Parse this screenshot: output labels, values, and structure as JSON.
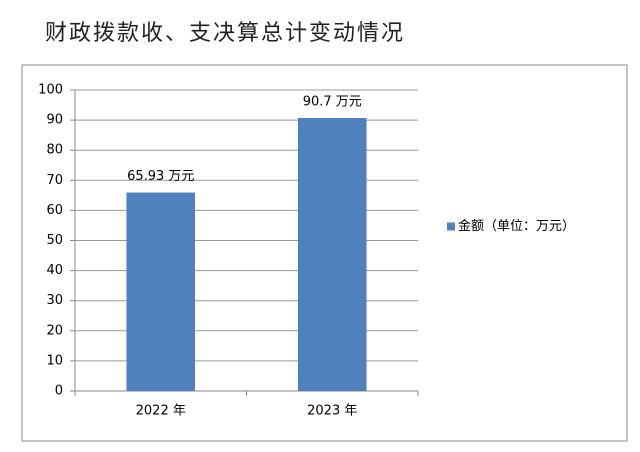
{
  "chart_data": {
    "type": "bar",
    "title": "财政拨款收、支决算总计变动情况",
    "categories": [
      "2022 年",
      "2023 年"
    ],
    "series": [
      {
        "name": "金额（单位：万元）",
        "color": "#4f81bd",
        "values": [
          65.93,
          90.7
        ],
        "value_labels": [
          "65.93 万元",
          "90.7 万元"
        ]
      }
    ],
    "ylim": [
      0,
      100
    ],
    "yticks": [
      0,
      10,
      20,
      30,
      40,
      50,
      60,
      70,
      80,
      90,
      100
    ],
    "grid": true,
    "legend": "right"
  }
}
